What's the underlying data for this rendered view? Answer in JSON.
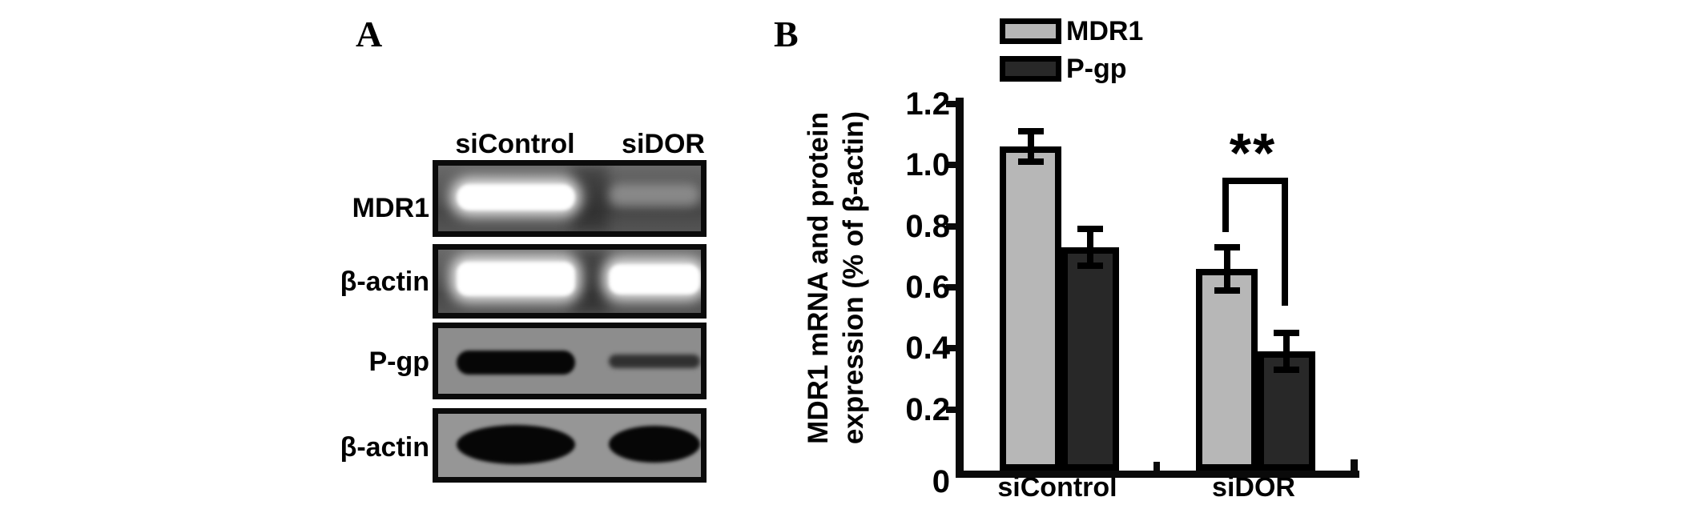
{
  "figure": {
    "panel_a": {
      "label": "A",
      "lane_headers": [
        "siControl",
        "siDOR"
      ],
      "rows": [
        {
          "label": "MDR1",
          "type": "gel",
          "bands": {
            "siControl": "strong",
            "siDOR": "weak"
          }
        },
        {
          "label": "β-actin",
          "type": "gel",
          "bands": {
            "siControl": "strong",
            "siDOR": "strong"
          }
        },
        {
          "label": "P-gp",
          "type": "blot",
          "bands": {
            "siControl": "strong",
            "siDOR": "weak"
          }
        },
        {
          "label": "β-actin",
          "type": "blot",
          "bands": {
            "siControl": "strong",
            "siDOR": "strong"
          }
        }
      ]
    },
    "panel_b": {
      "label": "B",
      "legend": [
        {
          "label": "MDR1",
          "color": "#b7b7b7"
        },
        {
          "label": "P-gp",
          "color": "#282828"
        }
      ],
      "y_axis_label": [
        "MDR1 mRNA and protein",
        "expression (% of β-actin)"
      ],
      "significance_label": "**"
    }
  },
  "chart_data": {
    "type": "bar",
    "categories": [
      "siControl",
      "siDOR"
    ],
    "series": [
      {
        "name": "MDR1",
        "color": "#b7b7b7",
        "values": [
          1.06,
          0.66
        ],
        "errors": [
          0.05,
          0.07
        ]
      },
      {
        "name": "P-gp",
        "color": "#282828",
        "values": [
          0.73,
          0.39
        ],
        "errors": [
          0.06,
          0.06
        ]
      }
    ],
    "ylabel": "MDR1 mRNA and protein expression (% of β-actin)",
    "ylim": [
      0,
      1.2
    ],
    "yticks": [
      {
        "value": 0,
        "label": "0"
      },
      {
        "value": 0.2,
        "label": "0.2"
      },
      {
        "value": 0.4,
        "label": "0.4"
      },
      {
        "value": 0.6,
        "label": "0.6"
      },
      {
        "value": 0.8,
        "label": "0.8"
      },
      {
        "value": 1.0,
        "label": "1.0"
      },
      {
        "value": 1.2,
        "label": "1.2"
      }
    ],
    "grid": false,
    "legend_position": "top",
    "annotations": [
      {
        "text": "**",
        "category": "siDOR",
        "between_series": [
          "MDR1",
          "P-gp"
        ]
      }
    ]
  }
}
